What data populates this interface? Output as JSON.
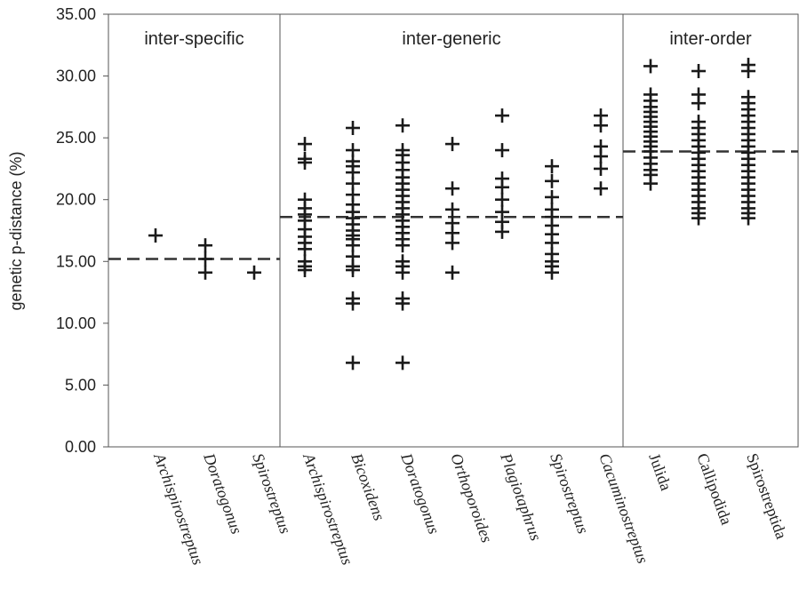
{
  "chart_data": {
    "type": "scatter",
    "ylabel": "genetic p-distance (%)",
    "ylim": [
      0,
      35
    ],
    "yticks": [
      "0.00",
      "5.00",
      "10.00",
      "15.00",
      "20.00",
      "25.00",
      "30.00",
      "35.00"
    ],
    "yticks_values": [
      0,
      5,
      10,
      15,
      20,
      25,
      30,
      35
    ],
    "marker": "+",
    "marker_color": "#1a1a1a",
    "sections": [
      {
        "label": "inter-specific",
        "categories": [
          0,
          1,
          2
        ],
        "mean": 15.2
      },
      {
        "label": "inter-generic",
        "categories": [
          3,
          4,
          5,
          6,
          7,
          8,
          9
        ],
        "mean": 18.6
      },
      {
        "label": "inter-order",
        "categories": [
          10,
          11,
          12
        ],
        "mean": 23.9
      }
    ],
    "categories": [
      {
        "name": "Archispirostreptus",
        "italic": true,
        "values": [
          17.1
        ]
      },
      {
        "name": "Doratogonus",
        "italic": true,
        "values": [
          14.1,
          15.2,
          16.3
        ]
      },
      {
        "name": "Spirostreptus",
        "italic": true,
        "values": [
          14.1
        ]
      },
      {
        "name": "Archispirostreptus",
        "italic": true,
        "values": [
          14.3,
          14.6,
          15.0,
          16.0,
          16.5,
          17.0,
          17.6,
          18.3,
          18.8,
          19.3,
          20.0,
          23.0,
          23.3,
          24.5
        ]
      },
      {
        "name": "Bicoxidens",
        "italic": true,
        "values": [
          6.8,
          11.6,
          12.0,
          14.3,
          14.6,
          15.4,
          16.3,
          16.8,
          17.1,
          17.5,
          18.0,
          18.5,
          19.0,
          19.6,
          20.4,
          21.3,
          22.2,
          22.7,
          23.1,
          24.0,
          25.8
        ]
      },
      {
        "name": "Doratogonus",
        "italic": true,
        "values": [
          6.8,
          11.6,
          12.0,
          14.1,
          14.6,
          15.0,
          16.3,
          16.8,
          17.3,
          17.8,
          18.3,
          18.8,
          19.3,
          19.8,
          20.3,
          20.8,
          21.3,
          21.8,
          22.4,
          23.0,
          23.6,
          24.0,
          26.0
        ]
      },
      {
        "name": "Orthoporoides",
        "italic": true,
        "values": [
          14.1,
          16.5,
          17.3,
          18.1,
          19.2,
          20.9,
          24.5
        ]
      },
      {
        "name": "Plagiotaphrus",
        "italic": true,
        "values": [
          17.4,
          18.2,
          19.0,
          20.0,
          21.0,
          21.7,
          24.0,
          26.8
        ]
      },
      {
        "name": "Spirostreptus",
        "italic": true,
        "values": [
          14.1,
          14.6,
          15.0,
          15.6,
          16.5,
          17.2,
          17.9,
          18.6,
          19.2,
          20.2,
          21.5,
          22.7
        ]
      },
      {
        "name": "Cacuminostreptus",
        "italic": true,
        "values": [
          20.9,
          22.5,
          23.5,
          24.3,
          26.0,
          26.8
        ]
      },
      {
        "name": "Julida",
        "italic": false,
        "values": [
          21.3,
          22.0,
          22.4,
          22.9,
          23.4,
          23.9,
          24.3,
          24.7,
          25.1,
          25.5,
          25.9,
          26.3,
          26.7,
          27.1,
          27.5,
          28.0,
          28.5,
          30.8
        ]
      },
      {
        "name": "Callipodida",
        "italic": false,
        "values": [
          18.5,
          18.9,
          19.3,
          19.8,
          20.3,
          20.8,
          21.3,
          21.8,
          22.3,
          22.8,
          23.3,
          23.8,
          24.3,
          24.8,
          25.3,
          25.8,
          26.3,
          27.8,
          28.5,
          30.4
        ]
      },
      {
        "name": "Spirostreptida",
        "italic": false,
        "values": [
          18.5,
          18.9,
          19.3,
          19.8,
          20.3,
          20.8,
          21.3,
          21.8,
          22.3,
          22.8,
          23.3,
          23.8,
          24.3,
          24.8,
          25.3,
          25.8,
          26.3,
          26.8,
          27.3,
          27.8,
          28.3,
          30.4,
          30.9
        ]
      }
    ]
  }
}
